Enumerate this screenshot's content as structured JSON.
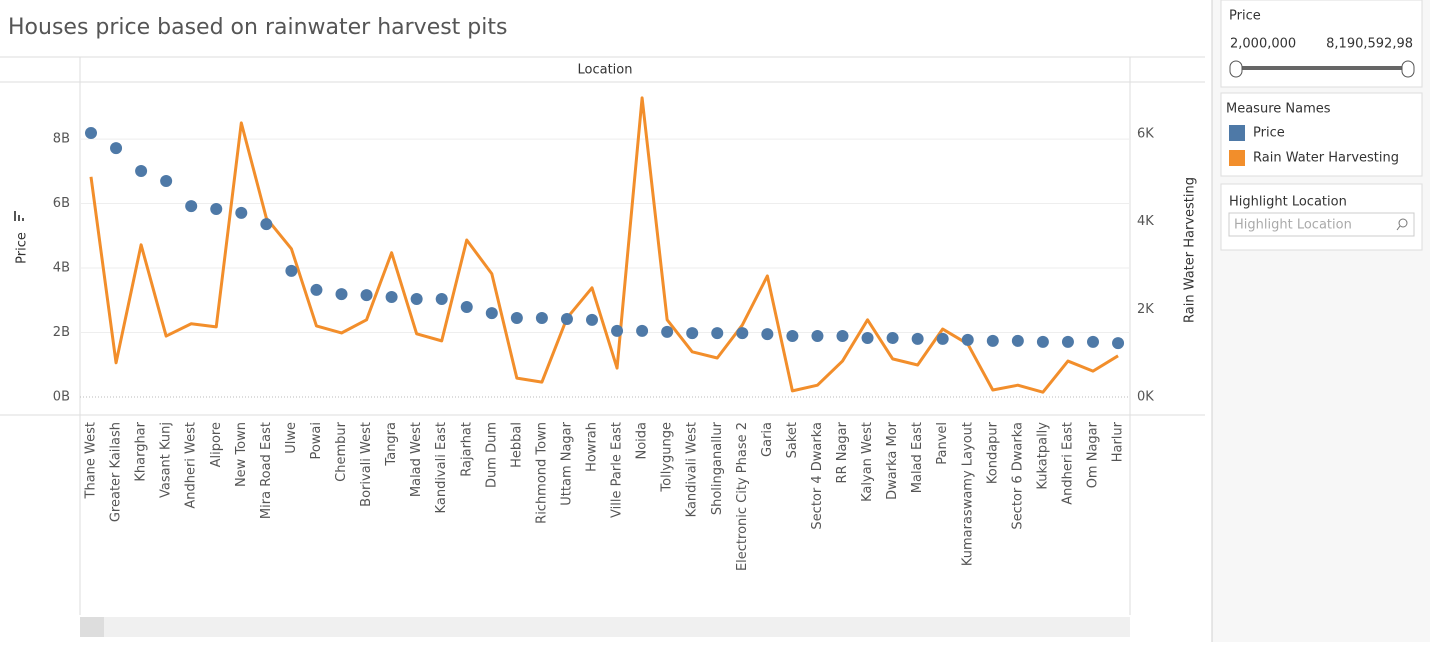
{
  "chart_data": {
    "type": "dual-axis",
    "title": "Houses price based on rainwater harvest pits",
    "column_header": "Location",
    "y_label": "Price",
    "y2_label": "Rain Water Harvesting",
    "categories": [
      "Thane West",
      "Greater Kailash",
      "Kharghar",
      "Vasant Kunj",
      "Andheri West",
      "Alipore",
      "New Town",
      "Mira Road East",
      "Ulwe",
      "Powai",
      "Chembur",
      "Borivali West",
      "Tangra",
      "Malad West",
      "Kandivali East",
      "Rajarhat",
      "Dum Dum",
      "Hebbal",
      "Richmond Town",
      "Uttam Nagar",
      "Howrah",
      "Ville Parle East",
      "Noida",
      "Tollygunge",
      "Kandivali West",
      "Sholinganallur",
      "Electronic City Phase 2",
      "Garia",
      "Saket",
      "Sector 4 Dwarka",
      "RR Nagar",
      "Kalyan West",
      "Dwarka Mor",
      "Malad East",
      "Panvel",
      "Kumaraswamy Layout",
      "Kondapur",
      "Sector 6 Dwarka",
      "Kukatpally",
      "Andheri East",
      "Om Nagar",
      "Harlur"
    ],
    "series": [
      {
        "name": "Price",
        "color": "#4e79a7",
        "mark": "circle",
        "values": [
          8.19,
          7.72,
          7.01,
          6.7,
          5.92,
          5.83,
          5.71,
          5.36,
          3.91,
          3.32,
          3.19,
          3.16,
          3.1,
          3.04,
          3.04,
          2.79,
          2.6,
          2.45,
          2.45,
          2.42,
          2.39,
          2.05,
          2.05,
          2.02,
          1.98,
          1.98,
          1.98,
          1.95,
          1.89,
          1.89,
          1.89,
          1.83,
          1.83,
          1.8,
          1.8,
          1.77,
          1.74,
          1.74,
          1.71,
          1.71,
          1.71,
          1.67
        ]
      },
      {
        "name": "Rain Water Harvesting",
        "color": "#f28e2b",
        "mark": "line",
        "axis": "y2",
        "values": [
          5.02,
          0.78,
          3.47,
          1.39,
          1.67,
          1.6,
          6.25,
          4.08,
          3.38,
          1.62,
          1.46,
          1.76,
          3.29,
          1.44,
          1.28,
          3.58,
          2.81,
          0.43,
          0.34,
          1.8,
          2.49,
          0.66,
          6.82,
          1.76,
          1.03,
          0.89,
          1.64,
          2.76,
          0.14,
          0.27,
          0.82,
          1.76,
          0.87,
          0.73,
          1.55,
          1.21,
          0.16,
          0.27,
          0.11,
          0.82,
          0.59,
          0.94
        ]
      }
    ],
    "ylim": [
      -0.56,
      9.74
    ],
    "yticks": [
      {
        "value": 0,
        "label": "0B"
      },
      {
        "value": 2,
        "label": "2B"
      },
      {
        "value": 4,
        "label": "4B"
      },
      {
        "value": 6,
        "label": "6B"
      },
      {
        "value": 8,
        "label": "8B"
      }
    ],
    "y2lim": [
      -0.41,
      7.16
    ],
    "y2ticks": [
      {
        "value": 0,
        "label": "0K"
      },
      {
        "value": 2,
        "label": "2K"
      },
      {
        "value": 4,
        "label": "4K"
      },
      {
        "value": 6,
        "label": "6K"
      }
    ],
    "grid": true,
    "legend_title": "Measure Names"
  },
  "filter": {
    "title": "Price",
    "min_label": "2,000,000",
    "max_label": "8,190,592,98"
  },
  "highlight": {
    "title": "Highlight Location",
    "placeholder": "Highlight Location"
  }
}
